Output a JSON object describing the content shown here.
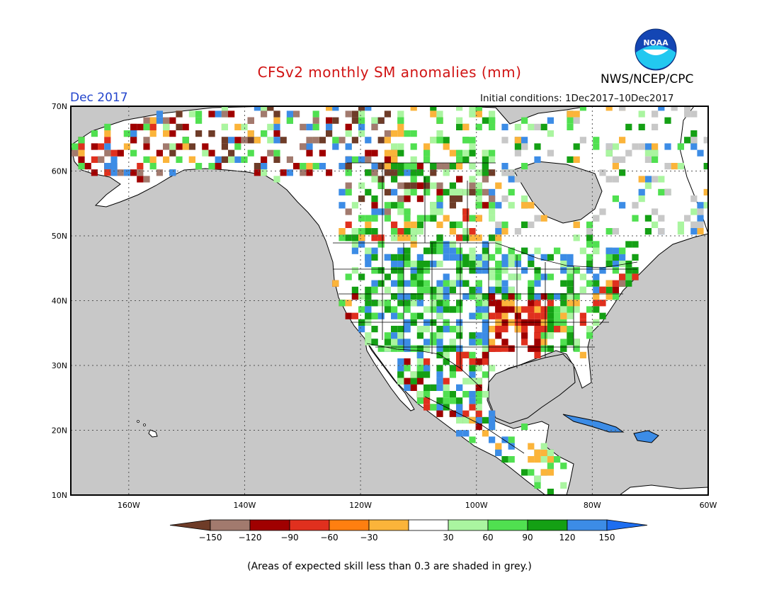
{
  "header": {
    "title": "CFSv2 monthly SM anomalies (mm)",
    "month": "Dec 2017",
    "initial_conditions": "Initial conditions: 1Dec2017–10Dec2017",
    "agency": "NWS/NCEP/CPC",
    "logo_text": "NOAA"
  },
  "map": {
    "lat_labels": [
      "70N",
      "60N",
      "50N",
      "40N",
      "30N",
      "20N",
      "10N"
    ],
    "lon_labels": [
      "160W",
      "140W",
      "120W",
      "100W",
      "80W",
      "60W"
    ],
    "masked_color": "#c8c8c8",
    "ocean_color": "#c8c8c8"
  },
  "colorbar": {
    "tick_labels": [
      "−150",
      "−120",
      "−90",
      "−60",
      "−30",
      "30",
      "60",
      "90",
      "120",
      "150"
    ],
    "colors": [
      "#6e3c28",
      "#a27a6e",
      "#a00000",
      "#e0301e",
      "#ff7f10",
      "#fbb43a",
      "#ffffff",
      "#aaf5a0",
      "#50e050",
      "#14a014",
      "#3c8ce6",
      "#1e6ef0"
    ],
    "palette_names": {
      "dark_brown": "#6e3c28",
      "brown": "#a27a6e",
      "dark_red": "#a00000",
      "red": "#e0301e",
      "orange": "#fbb43a",
      "white": "#ffffff",
      "light_green": "#aaf5a0",
      "green": "#50e050",
      "dark_green": "#14a014",
      "blue": "#3c8ce6"
    }
  },
  "footnote": "(Areas of expected skill less than 0.3 are shaded in grey.)"
}
